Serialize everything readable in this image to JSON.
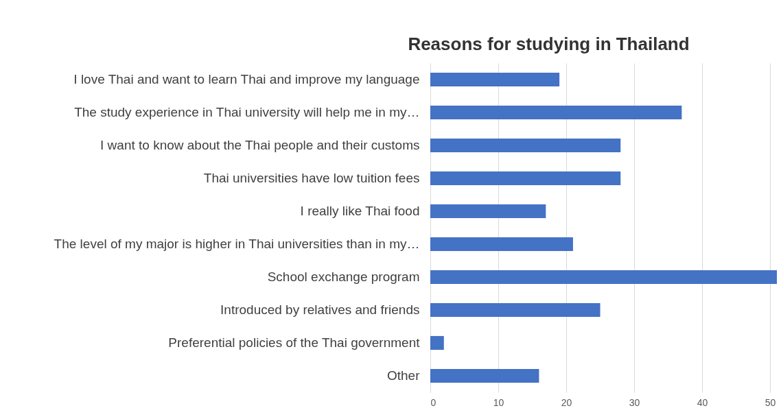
{
  "chart_data": {
    "type": "bar",
    "orientation": "horizontal",
    "title": "Reasons for studying in Thailand",
    "categories": [
      "I love Thai and want to learn Thai and improve my language",
      "The study experience in Thai university will help me in my…",
      "I want to know about the Thai people and their customs",
      "Thai universities have low tuition fees",
      "I really like Thai food",
      "The level of my major is higher in Thai universities than in my…",
      "School exchange program",
      "Introduced by relatives and friends",
      "Preferential policies of the Thai government",
      "Other"
    ],
    "values": [
      19,
      37,
      28,
      28,
      17,
      21,
      51,
      25,
      2,
      16
    ],
    "color": "#4472c4",
    "xlim": [
      0,
      51
    ],
    "xticks": [
      0,
      10,
      20,
      30,
      40,
      50
    ],
    "grid": "x"
  }
}
